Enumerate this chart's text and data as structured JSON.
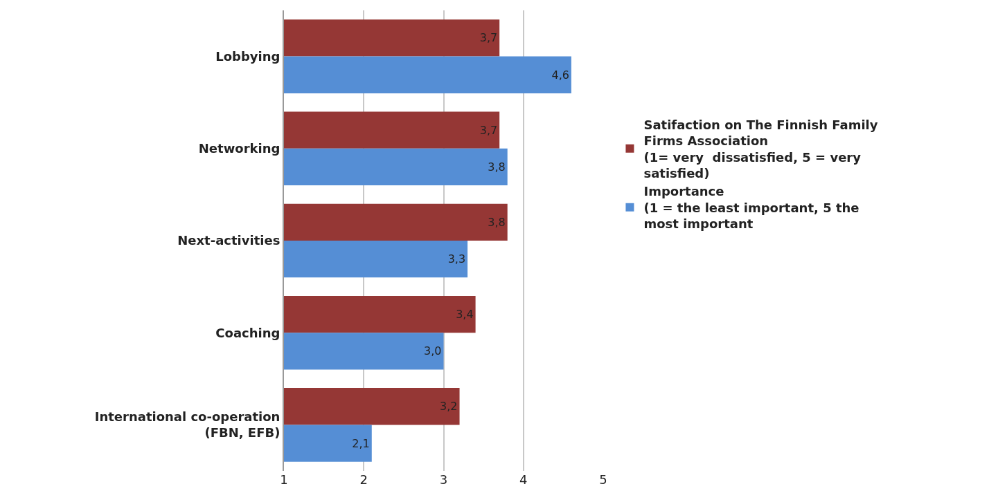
{
  "chart_data": {
    "type": "bar",
    "orientation": "horizontal",
    "categories": [
      "Lobbying",
      "Networking",
      "Next-activities",
      "Coaching",
      "International co-operation\n(FBN, EFB)"
    ],
    "series": [
      {
        "name": "Satifaction on The Finnish Family\nFirms Association\n(1= very  dissatisfied, 5 = very\nsatisfied)",
        "color": "#953735",
        "values": [
          3.7,
          3.7,
          3.8,
          3.4,
          3.2
        ],
        "value_labels": [
          "3,7",
          "3,7",
          "3,8",
          "3,4",
          "3,2"
        ]
      },
      {
        "name": "Importance\n(1 = the least important, 5 the\nmost important",
        "color": "#558ed5",
        "values": [
          4.6,
          3.8,
          3.3,
          3.0,
          2.1
        ],
        "value_labels": [
          "4,6",
          "3,8",
          "3,3",
          "3,0",
          "2,1"
        ]
      }
    ],
    "xlim": [
      1,
      5
    ],
    "xticks": [
      1,
      2,
      3,
      4,
      5
    ],
    "grid": "x",
    "legend": "right"
  }
}
